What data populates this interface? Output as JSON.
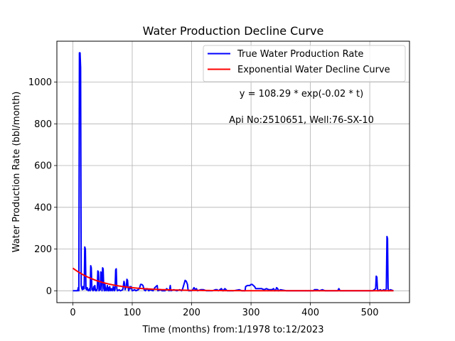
{
  "chart_data": {
    "type": "line",
    "title": "Water Production Decline Curve",
    "xlabel": "Time (months) from:1/1978 to:12/2023",
    "ylabel": "Water Production Rate (bbl/month)",
    "xlim": [
      -27,
      567
    ],
    "ylim": [
      -57,
      1196
    ],
    "xticks": [
      0,
      100,
      200,
      300,
      400,
      500
    ],
    "yticks": [
      0,
      200,
      400,
      600,
      800,
      1000
    ],
    "grid": true,
    "legend": "top-right",
    "annotations": [
      {
        "text": "y = 108.29 * exp(-0.02 * t)",
        "x": 385,
        "y": 930
      },
      {
        "text": "Api No:2510651, Well:76-SX-10",
        "x": 385,
        "y": 805
      }
    ],
    "series": [
      {
        "name": "True Water Production Rate",
        "color": "#0000ff",
        "points": [
          [
            0,
            0
          ],
          [
            8,
            0
          ],
          [
            9,
            15
          ],
          [
            10,
            0
          ],
          [
            11,
            1140
          ],
          [
            12,
            1140
          ],
          [
            13,
            1070
          ],
          [
            14,
            25
          ],
          [
            15,
            10
          ],
          [
            16,
            5
          ],
          [
            17,
            20
          ],
          [
            18,
            8
          ],
          [
            19,
            10
          ],
          [
            20,
            210
          ],
          [
            21,
            200
          ],
          [
            22,
            10
          ],
          [
            23,
            5
          ],
          [
            24,
            15
          ],
          [
            25,
            5
          ],
          [
            26,
            0
          ],
          [
            27,
            5
          ],
          [
            28,
            10
          ],
          [
            29,
            0
          ],
          [
            30,
            120
          ],
          [
            31,
            110
          ],
          [
            32,
            5
          ],
          [
            33,
            10
          ],
          [
            34,
            0
          ],
          [
            35,
            20
          ],
          [
            36,
            5
          ],
          [
            37,
            25
          ],
          [
            38,
            0
          ],
          [
            39,
            5
          ],
          [
            40,
            0
          ],
          [
            41,
            10
          ],
          [
            42,
            95
          ],
          [
            43,
            90
          ],
          [
            44,
            0
          ],
          [
            45,
            10
          ],
          [
            46,
            5
          ],
          [
            47,
            90
          ],
          [
            48,
            85
          ],
          [
            49,
            0
          ],
          [
            50,
            110
          ],
          [
            51,
            105
          ],
          [
            52,
            10
          ],
          [
            53,
            0
          ],
          [
            54,
            30
          ],
          [
            55,
            5
          ],
          [
            56,
            0
          ],
          [
            57,
            10
          ],
          [
            58,
            25
          ],
          [
            59,
            0
          ],
          [
            60,
            15
          ],
          [
            61,
            0
          ],
          [
            62,
            20
          ],
          [
            63,
            5
          ],
          [
            64,
            0
          ],
          [
            65,
            10
          ],
          [
            66,
            5
          ],
          [
            67,
            0
          ],
          [
            68,
            20
          ],
          [
            69,
            15
          ],
          [
            70,
            0
          ],
          [
            71,
            5
          ],
          [
            72,
            100
          ],
          [
            73,
            105
          ],
          [
            74,
            10
          ],
          [
            75,
            0
          ],
          [
            78,
            5
          ],
          [
            80,
            0
          ],
          [
            84,
            5
          ],
          [
            86,
            45
          ],
          [
            87,
            35
          ],
          [
            88,
            5
          ],
          [
            89,
            15
          ],
          [
            90,
            20
          ],
          [
            91,
            55
          ],
          [
            92,
            50
          ],
          [
            93,
            15
          ],
          [
            94,
            0
          ],
          [
            96,
            20
          ],
          [
            97,
            10
          ],
          [
            98,
            20
          ],
          [
            99,
            10
          ],
          [
            100,
            0
          ],
          [
            104,
            5
          ],
          [
            106,
            0
          ],
          [
            110,
            5
          ],
          [
            112,
            10
          ],
          [
            114,
            30
          ],
          [
            116,
            30
          ],
          [
            118,
            25
          ],
          [
            119,
            15
          ],
          [
            120,
            5
          ],
          [
            122,
            0
          ],
          [
            125,
            10
          ],
          [
            128,
            0
          ],
          [
            130,
            5
          ],
          [
            135,
            0
          ],
          [
            138,
            15
          ],
          [
            140,
            20
          ],
          [
            142,
            25
          ],
          [
            143,
            0
          ],
          [
            148,
            5
          ],
          [
            150,
            0
          ],
          [
            155,
            0
          ],
          [
            158,
            10
          ],
          [
            160,
            5
          ],
          [
            162,
            0
          ],
          [
            163,
            8
          ],
          [
            164,
            25
          ],
          [
            165,
            0
          ],
          [
            170,
            5
          ],
          [
            175,
            0
          ],
          [
            180,
            5
          ],
          [
            183,
            0
          ],
          [
            185,
            10
          ],
          [
            187,
            30
          ],
          [
            189,
            50
          ],
          [
            191,
            45
          ],
          [
            193,
            30
          ],
          [
            194,
            5
          ],
          [
            195,
            0
          ],
          [
            200,
            0
          ],
          [
            202,
            5
          ],
          [
            204,
            15
          ],
          [
            206,
            5
          ],
          [
            208,
            10
          ],
          [
            210,
            0
          ],
          [
            215,
            5
          ],
          [
            220,
            5
          ],
          [
            225,
            0
          ],
          [
            230,
            0
          ],
          [
            235,
            0
          ],
          [
            240,
            5
          ],
          [
            243,
            5
          ],
          [
            245,
            0
          ],
          [
            250,
            10
          ],
          [
            253,
            0
          ],
          [
            256,
            10
          ],
          [
            258,
            5
          ],
          [
            260,
            0
          ],
          [
            270,
            0
          ],
          [
            280,
            5
          ],
          [
            285,
            0
          ],
          [
            290,
            0
          ],
          [
            291,
            20
          ],
          [
            294,
            25
          ],
          [
            298,
            25
          ],
          [
            300,
            30
          ],
          [
            302,
            30
          ],
          [
            304,
            25
          ],
          [
            306,
            20
          ],
          [
            308,
            10
          ],
          [
            312,
            10
          ],
          [
            318,
            10
          ],
          [
            322,
            5
          ],
          [
            326,
            10
          ],
          [
            330,
            5
          ],
          [
            335,
            5
          ],
          [
            338,
            10
          ],
          [
            340,
            0
          ],
          [
            342,
            5
          ],
          [
            343,
            15
          ],
          [
            345,
            10
          ],
          [
            346,
            0
          ],
          [
            350,
            5
          ],
          [
            360,
            0
          ],
          [
            370,
            0
          ],
          [
            380,
            0
          ],
          [
            390,
            0
          ],
          [
            400,
            0
          ],
          [
            405,
            0
          ],
          [
            407,
            5
          ],
          [
            412,
            5
          ],
          [
            415,
            0
          ],
          [
            420,
            5
          ],
          [
            425,
            0
          ],
          [
            430,
            0
          ],
          [
            440,
            0
          ],
          [
            446,
            0
          ],
          [
            448,
            10
          ],
          [
            450,
            0
          ],
          [
            460,
            0
          ],
          [
            470,
            0
          ],
          [
            480,
            0
          ],
          [
            490,
            0
          ],
          [
            500,
            0
          ],
          [
            505,
            0
          ],
          [
            510,
            10
          ],
          [
            511,
            70
          ],
          [
            512,
            65
          ],
          [
            513,
            10
          ],
          [
            514,
            0
          ],
          [
            518,
            5
          ],
          [
            520,
            0
          ],
          [
            524,
            5
          ],
          [
            526,
            0
          ],
          [
            528,
            10
          ],
          [
            529,
            260
          ],
          [
            530,
            250
          ],
          [
            531,
            10
          ],
          [
            532,
            0
          ],
          [
            535,
            5
          ],
          [
            540,
            0
          ]
        ]
      },
      {
        "name": "Exponential Water Decline Curve",
        "color": "#ff0000",
        "a": 108.29,
        "b": -0.02,
        "t_start": 0,
        "t_end": 540
      }
    ]
  }
}
